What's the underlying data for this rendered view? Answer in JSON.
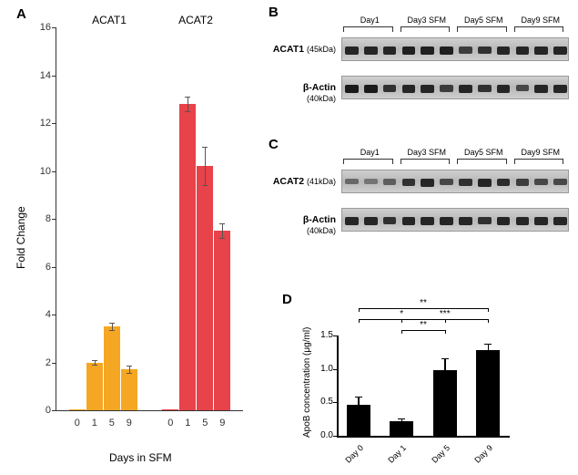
{
  "panelA": {
    "label": "A",
    "type": "bar",
    "y_label": "Fold Change",
    "x_label": "Days in SFM",
    "ylim": [
      0,
      16
    ],
    "ytick_step": 2,
    "groups": [
      {
        "name": "ACAT1",
        "color": "#f5a623",
        "x_ticks": [
          "0",
          "1",
          "5",
          "9"
        ],
        "values": [
          0.05,
          2.0,
          3.5,
          1.7
        ],
        "errors": [
          0,
          0.1,
          0.15,
          0.15
        ]
      },
      {
        "name": "ACAT2",
        "color": "#e8424a",
        "x_ticks": [
          "0",
          "1",
          "5",
          "9"
        ],
        "values": [
          0.05,
          12.8,
          10.2,
          7.5
        ],
        "errors": [
          0,
          0.3,
          0.8,
          0.3
        ]
      }
    ],
    "title_fontsize": 12,
    "label_fontsize": 12,
    "tick_fontsize": 11,
    "background_color": "#ffffff"
  },
  "panelB": {
    "label": "B",
    "lane_headers": [
      "Day1",
      "Day3 SFM",
      "Day5 SFM",
      "Day9 SFM"
    ],
    "rows": [
      {
        "name": "ACAT1",
        "kda": "(45kDa)",
        "band_intensities": [
          0.9,
          0.9,
          0.9,
          0.95,
          0.95,
          0.95,
          0.7,
          0.8,
          0.9,
          0.9,
          0.9,
          0.9
        ]
      },
      {
        "name": "β-Actin",
        "kda": "(40kDa)",
        "band_intensities": [
          1,
          1,
          0.8,
          0.9,
          0.9,
          0.7,
          0.9,
          0.8,
          0.9,
          0.6,
          0.9,
          0.9
        ]
      }
    ],
    "lanes_per_group": 3,
    "strip_bg": "#c8c8c8"
  },
  "panelC": {
    "label": "C",
    "lane_headers": [
      "Day1",
      "Day3 SFM",
      "Day5 SFM",
      "Day9 SFM"
    ],
    "rows": [
      {
        "name": "ACAT2",
        "kda": "(41kDa)",
        "band_intensities": [
          0.3,
          0.2,
          0.4,
          0.8,
          0.9,
          0.6,
          0.8,
          0.9,
          0.85,
          0.7,
          0.6,
          0.6
        ]
      },
      {
        "name": "β-Actin",
        "kda": "(40kDa)",
        "band_intensities": [
          0.9,
          0.9,
          0.8,
          0.9,
          0.9,
          0.9,
          0.9,
          0.8,
          0.9,
          0.9,
          0.9,
          0.9
        ]
      }
    ],
    "lanes_per_group": 3,
    "strip_bg": "#c8c8c8"
  },
  "panelD": {
    "label": "D",
    "type": "bar",
    "y_label": "ApoB concentration (μg/ml)",
    "ylim": [
      0,
      1.5
    ],
    "ytick_step": 0.5,
    "x_ticks": [
      "Day 0",
      "Day 1",
      "Day 5",
      "Day 9"
    ],
    "values": [
      0.47,
      0.22,
      0.98,
      1.28
    ],
    "errors": [
      0.12,
      0.04,
      0.18,
      0.1
    ],
    "bar_color": "#000000",
    "significance": [
      {
        "from": 0,
        "to": 2,
        "label": "*",
        "level": 1
      },
      {
        "from": 0,
        "to": 3,
        "label": "**",
        "level": 2
      },
      {
        "from": 1,
        "to": 2,
        "label": "**",
        "level": 0
      },
      {
        "from": 1,
        "to": 3,
        "label": "***",
        "level": 1
      }
    ],
    "label_fontsize": 10,
    "tick_fontsize": 10,
    "background_color": "#ffffff"
  }
}
